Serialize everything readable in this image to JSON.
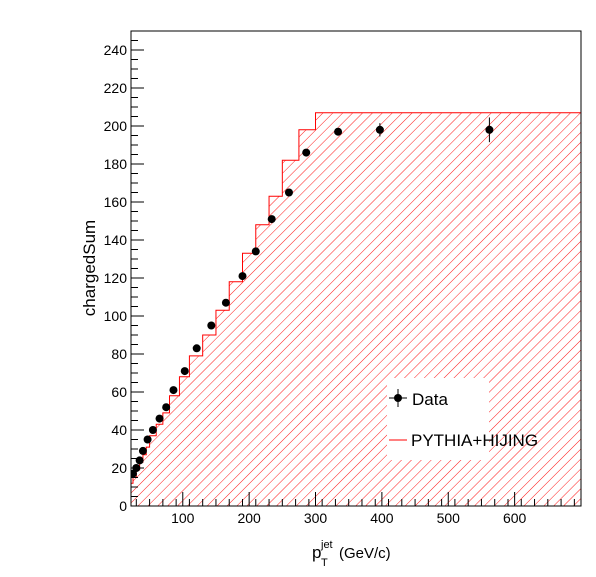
{
  "chart_data": {
    "type": "scatter",
    "title": "",
    "xlabel": "",
    "xlabel_main": "p",
    "xlabel_sup": "jet",
    "xlabel_sub": "T",
    "xlabel_unit": "(GeV/c)",
    "ylabel": "chargedSum",
    "xlim": [
      22,
      700
    ],
    "ylim": [
      0,
      250
    ],
    "x_ticks": [
      100,
      200,
      300,
      400,
      500,
      600
    ],
    "y_ticks": [
      0,
      20,
      40,
      60,
      80,
      100,
      120,
      140,
      160,
      180,
      200,
      220,
      240
    ],
    "grid": false,
    "legend_position": "bottom-right",
    "colors": {
      "data": "#000000",
      "sim": "#ff0000"
    },
    "series": [
      {
        "name": "Data",
        "kind": "points",
        "x": [
          25,
          30,
          35,
          40,
          47,
          55,
          65,
          75,
          86,
          103,
          121,
          143,
          165,
          190,
          210,
          234,
          260,
          286,
          334,
          397,
          562
        ],
        "y": [
          17,
          20,
          24,
          29,
          35,
          40,
          46,
          52,
          61,
          71,
          83,
          95,
          107,
          121,
          134,
          151,
          165,
          186,
          197,
          198,
          198
        ],
        "yerr": [
          0.6,
          0.7,
          0.8,
          0.8,
          0.9,
          1,
          1,
          1,
          1,
          1,
          1.1,
          1.1,
          1.2,
          1.2,
          1.3,
          1.4,
          1.5,
          1.6,
          1.8,
          3.5,
          6.5
        ]
      },
      {
        "name": "PYTHIA+HIJING",
        "kind": "step-hatched",
        "edges": [
          22,
          25,
          30,
          35,
          40,
          45,
          50,
          60,
          70,
          80,
          95,
          110,
          130,
          150,
          170,
          190,
          210,
          230,
          250,
          275,
          300,
          360,
          430,
          700
        ],
        "values": [
          12,
          15,
          19,
          23,
          27,
          31,
          37,
          43,
          49,
          58,
          68,
          79,
          90,
          103,
          118,
          133,
          148,
          163,
          182,
          198,
          207,
          207,
          207
        ]
      }
    ]
  }
}
